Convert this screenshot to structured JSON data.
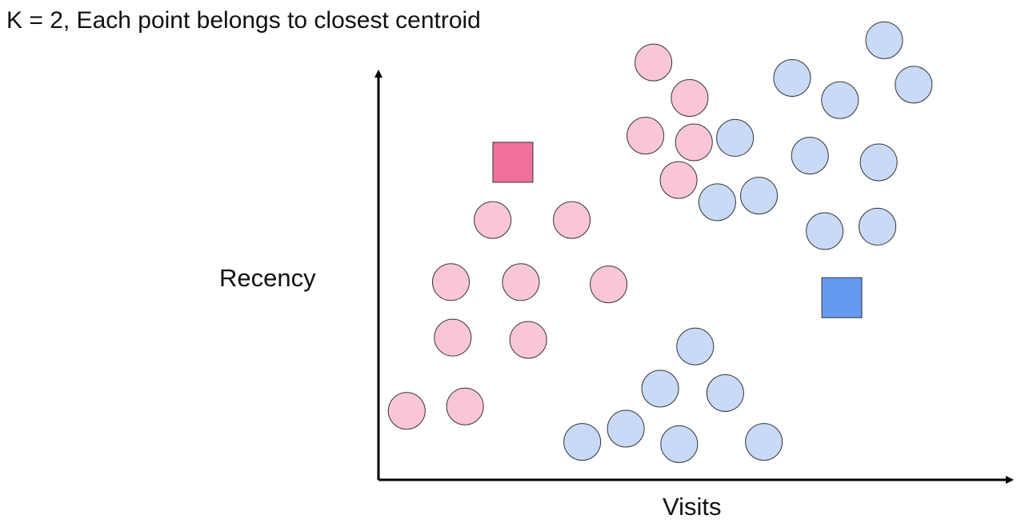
{
  "chart_data": {
    "type": "scatter",
    "title": "K = 2, Each point belongs to closest centroid",
    "xlabel": "Visits",
    "ylabel": "Recency",
    "xlim": [
      0,
      100
    ],
    "ylim": [
      0,
      100
    ],
    "grid": false,
    "colors": {
      "cluster_a_point": "#f9c6d8",
      "cluster_b_point": "#c8daf6",
      "cluster_a_centroid": "#f0709b",
      "cluster_b_centroid": "#6699f0",
      "outline": "#333333",
      "axis": "#000000"
    },
    "series": [
      {
        "cluster": "a",
        "marker": "circle",
        "points": [
          [
            4.6,
            15.0
          ],
          [
            14.1,
            16.0
          ],
          [
            12.1,
            31.5
          ],
          [
            24.4,
            31.0
          ],
          [
            11.8,
            44.0
          ],
          [
            23.2,
            44.0
          ],
          [
            37.5,
            43.5
          ],
          [
            18.6,
            58.0
          ],
          [
            31.5,
            58.0
          ],
          [
            44.8,
            93.5
          ],
          [
            50.7,
            85.5
          ],
          [
            43.5,
            77.0
          ],
          [
            51.4,
            75.5
          ],
          [
            48.9,
            67.0
          ]
        ]
      },
      {
        "cluster": "b",
        "marker": "circle",
        "points": [
          [
            33.2,
            8.0
          ],
          [
            40.3,
            11.0
          ],
          [
            49.0,
            7.5
          ],
          [
            62.8,
            8.0
          ],
          [
            45.9,
            20.0
          ],
          [
            56.5,
            19.0
          ],
          [
            51.6,
            29.5
          ],
          [
            58.1,
            76.5
          ],
          [
            55.2,
            62.0
          ],
          [
            62.0,
            63.5
          ],
          [
            67.4,
            90.0
          ],
          [
            75.2,
            85.0
          ],
          [
            82.4,
            98.5
          ],
          [
            87.2,
            88.5
          ],
          [
            70.3,
            72.5
          ],
          [
            81.5,
            71.0
          ],
          [
            72.7,
            55.5
          ],
          [
            81.3,
            56.5
          ]
        ]
      },
      {
        "cluster": "a",
        "marker": "square",
        "points": [
          [
            21.9,
            71.0
          ]
        ]
      },
      {
        "cluster": "b",
        "marker": "square",
        "points": [
          [
            75.5,
            40.5
          ]
        ]
      }
    ]
  }
}
